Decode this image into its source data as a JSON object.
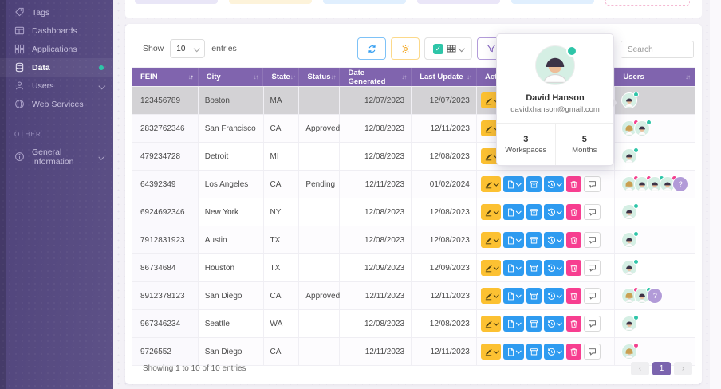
{
  "sidebar": {
    "items": [
      {
        "label": "Tags",
        "icon": "tag"
      },
      {
        "label": "Dashboards",
        "icon": "dashboard"
      },
      {
        "label": "Applications",
        "icon": "applications"
      },
      {
        "label": "Data",
        "icon": "data",
        "active": true
      },
      {
        "label": "Users",
        "icon": "users",
        "chevron": true
      },
      {
        "label": "Web Services",
        "icon": "globe"
      }
    ],
    "section_label": "OTHER",
    "other_items": [
      {
        "label": "General Information",
        "icon": "info",
        "chevron": true
      }
    ]
  },
  "top_strip": {
    "cards": [
      {
        "color": "#e9e6f7"
      },
      {
        "color": "#fdf3da"
      },
      {
        "color": "#e0effe"
      },
      {
        "color": "#eae6f8"
      },
      {
        "color": "#e0effe"
      },
      {
        "color": "transparent",
        "dashed": true
      }
    ]
  },
  "toolbar": {
    "show_label": "Show",
    "page_size": "10",
    "entries_label": "entries",
    "buttons": [
      {
        "name": "refresh",
        "style": "refresh",
        "icon": "refresh"
      },
      {
        "name": "settings",
        "style": "settings",
        "icon": "gear"
      },
      {
        "name": "column-visibility",
        "style": "columns",
        "icon": "grid",
        "checkbox": true,
        "caret": true
      },
      {
        "name": "filter",
        "style": "filter",
        "icon": "funnel"
      }
    ],
    "search_placeholder": "Search"
  },
  "table": {
    "columns": [
      {
        "label": "FEIN",
        "sort": "asc"
      },
      {
        "label": "City",
        "sort": "none"
      },
      {
        "label": "State",
        "sort": "none"
      },
      {
        "label": "Status",
        "sort": "none"
      },
      {
        "label": "Date Generated",
        "sort": "none"
      },
      {
        "label": "Last Update",
        "sort": "none"
      },
      {
        "label": "Actions",
        "sort": null
      },
      {
        "label": "Users",
        "sort": "none"
      }
    ],
    "actions": [
      {
        "name": "edit",
        "style": "amber",
        "icon": "pencil",
        "caret": true
      },
      {
        "name": "document",
        "style": "blue",
        "icon": "file",
        "caret": true
      },
      {
        "name": "archive",
        "style": "blue",
        "icon": "archive",
        "caret": false
      },
      {
        "name": "history",
        "style": "blue",
        "icon": "history",
        "caret": true
      },
      {
        "name": "delete",
        "style": "pink",
        "icon": "trash",
        "caret": false
      },
      {
        "name": "comment",
        "style": "ghost",
        "icon": "chat",
        "caret": false
      }
    ],
    "rows": [
      {
        "fein": "123456789",
        "city": "Boston",
        "state": "MA",
        "status": "",
        "date_generated": "12/07/2023",
        "last_update": "12/07/2023",
        "selected": true,
        "users": [
          {
            "kind": "man",
            "dot": "teal"
          }
        ]
      },
      {
        "fein": "2832762346",
        "city": "San Francisco",
        "state": "CA",
        "status": "Approved",
        "date_generated": "12/08/2023",
        "last_update": "12/11/2023",
        "users": [
          {
            "kind": "woman",
            "dot": "pink"
          },
          {
            "kind": "man",
            "dot": "teal"
          }
        ]
      },
      {
        "fein": "479234728",
        "city": "Detroit",
        "state": "MI",
        "status": "",
        "date_generated": "12/08/2023",
        "last_update": "12/08/2023",
        "users": [
          {
            "kind": "man",
            "dot": "teal"
          }
        ]
      },
      {
        "fein": "64392349",
        "city": "Los Angeles",
        "state": "CA",
        "status": "Pending",
        "date_generated": "12/11/2023",
        "last_update": "01/02/2024",
        "users": [
          {
            "kind": "woman",
            "dot": "pink"
          },
          {
            "kind": "man",
            "dot": "pink"
          },
          {
            "kind": "man",
            "dot": "teal"
          },
          {
            "kind": "man",
            "dot": "pink"
          },
          {
            "kind": "more",
            "label": "?"
          }
        ]
      },
      {
        "fein": "6924692346",
        "city": "New York",
        "state": "NY",
        "status": "",
        "date_generated": "12/08/2023",
        "last_update": "12/08/2023",
        "users": [
          {
            "kind": "man",
            "dot": "teal"
          }
        ]
      },
      {
        "fein": "7912831923",
        "city": "Austin",
        "state": "TX",
        "status": "",
        "date_generated": "12/08/2023",
        "last_update": "12/08/2023",
        "users": [
          {
            "kind": "man",
            "dot": "teal"
          }
        ]
      },
      {
        "fein": "86734684",
        "city": "Houston",
        "state": "TX",
        "status": "",
        "date_generated": "12/09/2023",
        "last_update": "12/09/2023",
        "users": [
          {
            "kind": "man",
            "dot": "teal"
          }
        ]
      },
      {
        "fein": "8912378123",
        "city": "San Diego",
        "state": "CA",
        "status": "Approved",
        "date_generated": "12/11/2023",
        "last_update": "12/11/2023",
        "users": [
          {
            "kind": "woman",
            "dot": "pink"
          },
          {
            "kind": "man",
            "dot": "teal"
          },
          {
            "kind": "more",
            "label": "?"
          }
        ]
      },
      {
        "fein": "967346234",
        "city": "Seattle",
        "state": "WA",
        "status": "",
        "date_generated": "12/08/2023",
        "last_update": "12/08/2023",
        "users": [
          {
            "kind": "man",
            "dot": "teal"
          }
        ]
      },
      {
        "fein": "9726552",
        "city": "San Diego",
        "state": "CA",
        "status": "",
        "date_generated": "12/11/2023",
        "last_update": "12/11/2023",
        "users": [
          {
            "kind": "woman",
            "dot": "pink"
          }
        ]
      }
    ]
  },
  "popup": {
    "name": "David Hanson",
    "email": "davidxhanson@gmail.com",
    "stats": [
      {
        "value": "3",
        "label": "Workspaces"
      },
      {
        "value": "5",
        "label": "Months"
      }
    ]
  },
  "footer": {
    "summary": "Showing 1 to 10 of 10 entries",
    "prev": "‹",
    "next": "›",
    "pages": [
      "1"
    ],
    "active_page": "1"
  },
  "colors": {
    "sidebar_gradient_from": "#4d4178",
    "sidebar_gradient_to": "#5e5288",
    "table_header": "#8064ae",
    "selected_row": "#d3d2d5",
    "accent_teal": "#2ec5a8",
    "accent_pink": "#f3408f",
    "button_amber": "#fcc132",
    "button_blue": "#2e9bf0",
    "button_pink": "#f73e90",
    "pager_active": "#7b64ae"
  }
}
